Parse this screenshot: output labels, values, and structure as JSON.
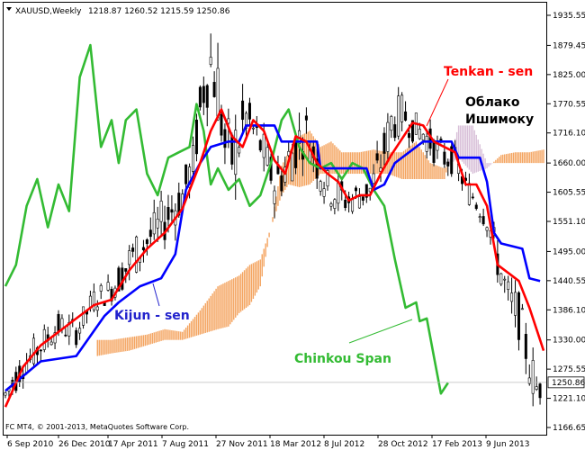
{
  "header": {
    "symbol": "XAUUSD,Weekly",
    "ohlc": "1218.87 1260.52 1215.59 1250.86"
  },
  "footer": {
    "copyright": "FC MT4, © 2001-2013, MetaQuotes Software Corp."
  },
  "annotations": {
    "tenkan": "Tenkan - sen",
    "kijun": "Kijun - sen",
    "chinkou": "Chinkou Span",
    "cloud_line1": "Облако",
    "cloud_line2": "Ишимоку"
  },
  "price_axis": {
    "labels": [
      "1935.55",
      "1879.45",
      "1825.00",
      "1770.55",
      "1716.10",
      "1660.00",
      "1605.55",
      "1551.10",
      "1495.00",
      "1440.55",
      "1386.10",
      "1330.00",
      "1275.55",
      "1221.10",
      "1166.65"
    ],
    "current_price": "1250.86"
  },
  "time_axis": {
    "labels": [
      "6 Sep 2010",
      "26 Dec 2010",
      "17 Apr 2011",
      "7 Aug 2011",
      "27 Nov 2011",
      "18 Mar 2012",
      "8 Jul 2012",
      "28 Oct 2012",
      "17 Feb 2013",
      "9 Jun 2013"
    ]
  },
  "colors": {
    "background": "#ffffff",
    "candle": "#000000",
    "tenkan": "#ff0000",
    "kijun": "#0000ff",
    "chinkou": "#33bb33",
    "cloud_bull": "#f4a460",
    "cloud_bear": "#d8bfd8"
  },
  "chart_data": {
    "type": "line",
    "instrument": "XAUUSD",
    "timeframe": "Weekly",
    "ylim": [
      1166.65,
      1935.55
    ],
    "x_tick_labels": [
      "6 Sep 2010",
      "26 Dec 2010",
      "17 Apr 2011",
      "7 Aug 2011",
      "27 Nov 2011",
      "18 Mar 2012",
      "8 Jul 2012",
      "28 Oct 2012",
      "17 Feb 2013",
      "9 Jun 2013"
    ],
    "series": [
      {
        "name": "Tenkan - sen",
        "values": [
          [
            0,
            1205
          ],
          [
            5,
            1280
          ],
          [
            10,
            1320
          ],
          [
            15,
            1345
          ],
          [
            20,
            1370
          ],
          [
            25,
            1395
          ],
          [
            30,
            1405
          ],
          [
            35,
            1460
          ],
          [
            40,
            1500
          ],
          [
            45,
            1530
          ],
          [
            50,
            1575
          ],
          [
            55,
            1660
          ],
          [
            58,
            1720
          ],
          [
            61,
            1760
          ],
          [
            64,
            1710
          ],
          [
            67,
            1690
          ],
          [
            70,
            1740
          ],
          [
            73,
            1720
          ],
          [
            76,
            1665
          ],
          [
            79,
            1640
          ],
          [
            82,
            1710
          ],
          [
            85,
            1700
          ],
          [
            88,
            1660
          ],
          [
            91,
            1640
          ],
          [
            94,
            1625
          ],
          [
            97,
            1590
          ],
          [
            100,
            1600
          ],
          [
            103,
            1600
          ],
          [
            106,
            1640
          ],
          [
            109,
            1675
          ],
          [
            112,
            1705
          ],
          [
            115,
            1735
          ],
          [
            118,
            1730
          ],
          [
            121,
            1700
          ],
          [
            124,
            1690
          ],
          [
            127,
            1680
          ],
          [
            130,
            1620
          ],
          [
            133,
            1620
          ],
          [
            136,
            1580
          ],
          [
            139,
            1470
          ],
          [
            142,
            1455
          ],
          [
            145,
            1440
          ],
          [
            148,
            1390
          ],
          [
            151,
            1330
          ],
          [
            152,
            1310
          ]
        ]
      },
      {
        "name": "Kijun - sen",
        "values": [
          [
            0,
            1235
          ],
          [
            10,
            1290
          ],
          [
            20,
            1300
          ],
          [
            28,
            1375
          ],
          [
            32,
            1400
          ],
          [
            38,
            1430
          ],
          [
            44,
            1445
          ],
          [
            48,
            1490
          ],
          [
            51,
            1610
          ],
          [
            55,
            1660
          ],
          [
            58,
            1690
          ],
          [
            63,
            1700
          ],
          [
            66,
            1700
          ],
          [
            68,
            1730
          ],
          [
            76,
            1730
          ],
          [
            78,
            1700
          ],
          [
            88,
            1700
          ],
          [
            89,
            1650
          ],
          [
            102,
            1650
          ],
          [
            104,
            1610
          ],
          [
            107,
            1620
          ],
          [
            110,
            1660
          ],
          [
            118,
            1700
          ],
          [
            126,
            1700
          ],
          [
            128,
            1670
          ],
          [
            134,
            1670
          ],
          [
            136,
            1625
          ],
          [
            138,
            1530
          ],
          [
            140,
            1510
          ],
          [
            146,
            1500
          ],
          [
            148,
            1445
          ],
          [
            151,
            1440
          ]
        ]
      },
      {
        "name": "Chinkou Span",
        "values": [
          [
            0,
            1430
          ],
          [
            3,
            1470
          ],
          [
            6,
            1580
          ],
          [
            9,
            1630
          ],
          [
            12,
            1540
          ],
          [
            15,
            1620
          ],
          [
            18,
            1570
          ],
          [
            21,
            1820
          ],
          [
            24,
            1880
          ],
          [
            27,
            1690
          ],
          [
            30,
            1740
          ],
          [
            32,
            1660
          ],
          [
            34,
            1740
          ],
          [
            37,
            1760
          ],
          [
            40,
            1640
          ],
          [
            43,
            1600
          ],
          [
            46,
            1670
          ],
          [
            49,
            1680
          ],
          [
            52,
            1690
          ],
          [
            54,
            1770
          ],
          [
            56,
            1720
          ],
          [
            58,
            1620
          ],
          [
            60,
            1650
          ],
          [
            63,
            1610
          ],
          [
            66,
            1630
          ],
          [
            69,
            1580
          ],
          [
            72,
            1600
          ],
          [
            75,
            1660
          ],
          [
            78,
            1740
          ],
          [
            80,
            1760
          ],
          [
            83,
            1690
          ],
          [
            86,
            1660
          ],
          [
            89,
            1650
          ],
          [
            92,
            1660
          ],
          [
            95,
            1630
          ],
          [
            98,
            1660
          ],
          [
            101,
            1650
          ],
          [
            104,
            1610
          ],
          [
            107,
            1580
          ],
          [
            110,
            1480
          ],
          [
            113,
            1390
          ],
          [
            116,
            1400
          ],
          [
            117,
            1365
          ],
          [
            119,
            1370
          ],
          [
            121,
            1300
          ],
          [
            123,
            1230
          ],
          [
            125,
            1250
          ]
        ]
      },
      {
        "name": "Cloud Span A",
        "values": [
          [
            26,
            1330
          ],
          [
            30,
            1330
          ],
          [
            35,
            1335
          ],
          [
            40,
            1340
          ],
          [
            45,
            1350
          ],
          [
            50,
            1345
          ],
          [
            55,
            1385
          ],
          [
            60,
            1430
          ],
          [
            63,
            1440
          ],
          [
            66,
            1450
          ],
          [
            69,
            1470
          ],
          [
            72,
            1480
          ],
          [
            75,
            1540
          ],
          [
            78,
            1655
          ],
          [
            80,
            1680
          ],
          [
            83,
            1710
          ],
          [
            86,
            1720
          ],
          [
            89,
            1690
          ],
          [
            92,
            1700
          ],
          [
            95,
            1680
          ],
          [
            100,
            1680
          ],
          [
            104,
            1685
          ],
          [
            108,
            1680
          ],
          [
            112,
            1680
          ],
          [
            116,
            1700
          ],
          [
            120,
            1660
          ],
          [
            124,
            1650
          ],
          [
            128,
            1670
          ],
          [
            132,
            1640
          ],
          [
            136,
            1650
          ],
          [
            140,
            1675
          ],
          [
            144,
            1680
          ],
          [
            148,
            1680
          ],
          [
            152,
            1685
          ]
        ]
      },
      {
        "name": "Cloud Span B",
        "values": [
          [
            26,
            1300
          ],
          [
            30,
            1305
          ],
          [
            35,
            1310
          ],
          [
            40,
            1320
          ],
          [
            45,
            1330
          ],
          [
            50,
            1330
          ],
          [
            55,
            1340
          ],
          [
            60,
            1350
          ],
          [
            63,
            1355
          ],
          [
            66,
            1380
          ],
          [
            69,
            1395
          ],
          [
            72,
            1430
          ],
          [
            75,
            1540
          ],
          [
            78,
            1600
          ],
          [
            80,
            1620
          ],
          [
            83,
            1615
          ],
          [
            86,
            1620
          ],
          [
            89,
            1640
          ],
          [
            92,
            1640
          ],
          [
            95,
            1640
          ],
          [
            100,
            1640
          ],
          [
            104,
            1640
          ],
          [
            108,
            1640
          ],
          [
            112,
            1630
          ],
          [
            116,
            1630
          ],
          [
            120,
            1630
          ],
          [
            124,
            1630
          ],
          [
            128,
            1730
          ],
          [
            132,
            1730
          ],
          [
            136,
            1660
          ],
          [
            140,
            1660
          ],
          [
            144,
            1660
          ],
          [
            148,
            1660
          ],
          [
            152,
            1660
          ]
        ]
      }
    ],
    "candle_price_band": [
      [
        0,
        1195,
        1260
      ],
      [
        5,
        1255,
        1310
      ],
      [
        10,
        1290,
        1350
      ],
      [
        15,
        1330,
        1380
      ],
      [
        20,
        1320,
        1370
      ],
      [
        25,
        1380,
        1430
      ],
      [
        30,
        1400,
        1450
      ],
      [
        35,
        1430,
        1520
      ],
      [
        40,
        1480,
        1550
      ],
      [
        45,
        1510,
        1600
      ],
      [
        50,
        1560,
        1640
      ],
      [
        53,
        1620,
        1700
      ],
      [
        56,
        1740,
        1870
      ],
      [
        58,
        1780,
        1920
      ],
      [
        60,
        1720,
        1880
      ],
      [
        62,
        1620,
        1760
      ],
      [
        64,
        1600,
        1740
      ],
      [
        66,
        1640,
        1780
      ],
      [
        68,
        1700,
        1790
      ],
      [
        70,
        1680,
        1760
      ],
      [
        73,
        1640,
        1720
      ],
      [
        76,
        1580,
        1660
      ],
      [
        79,
        1600,
        1700
      ],
      [
        82,
        1640,
        1750
      ],
      [
        85,
        1680,
        1760
      ],
      [
        88,
        1620,
        1700
      ],
      [
        91,
        1580,
        1650
      ],
      [
        94,
        1560,
        1640
      ],
      [
        97,
        1560,
        1620
      ],
      [
        100,
        1570,
        1630
      ],
      [
        103,
        1580,
        1640
      ],
      [
        106,
        1620,
        1700
      ],
      [
        109,
        1690,
        1780
      ],
      [
        112,
        1720,
        1790
      ],
      [
        115,
        1700,
        1760
      ],
      [
        118,
        1690,
        1740
      ],
      [
        121,
        1660,
        1720
      ],
      [
        124,
        1640,
        1700
      ],
      [
        127,
        1640,
        1690
      ],
      [
        130,
        1590,
        1640
      ],
      [
        133,
        1560,
        1620
      ],
      [
        136,
        1530,
        1590
      ],
      [
        139,
        1440,
        1520
      ],
      [
        142,
        1360,
        1450
      ],
      [
        145,
        1330,
        1420
      ],
      [
        148,
        1240,
        1330
      ],
      [
        150,
        1200,
        1280
      ],
      [
        151,
        1215,
        1260
      ]
    ]
  }
}
